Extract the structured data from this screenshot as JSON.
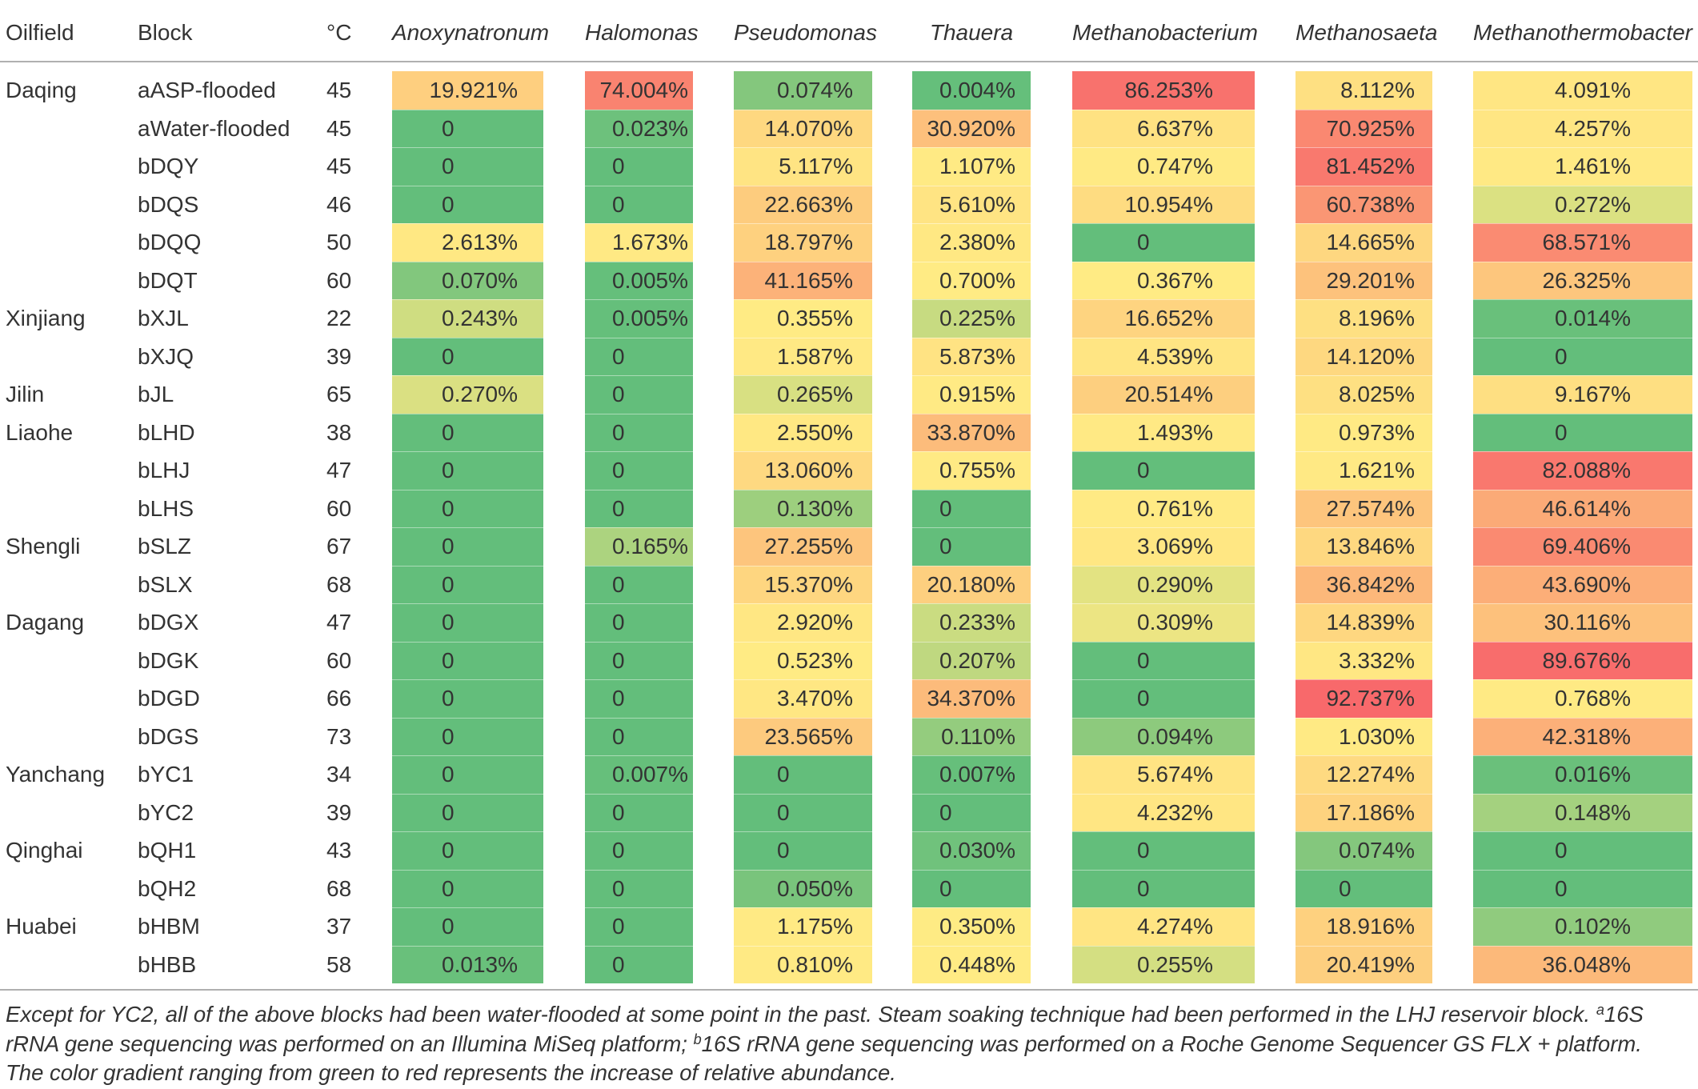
{
  "table": {
    "header": {
      "oilfield": "Oilfield",
      "block": "Block",
      "temperature": "°C",
      "genera": [
        "Anoxynatronum",
        "Halomonas",
        "Pseudomonas",
        "Thauera",
        "Methanobacterium",
        "Methanosaeta",
        "Methanothermobacter"
      ]
    },
    "rows": [
      {
        "oilfield": "Daqing",
        "block": "aASP-flooded",
        "temperature": "45",
        "values": [
          "19.921%",
          "74.004%",
          "0.074%",
          "0.004%",
          "86.253%",
          "8.112%",
          "4.091%"
        ]
      },
      {
        "oilfield": "",
        "block": "aWater-flooded",
        "temperature": "45",
        "values": [
          "0",
          "0.023%",
          "14.070%",
          "30.920%",
          "6.637%",
          "70.925%",
          "4.257%"
        ]
      },
      {
        "oilfield": "",
        "block": "bDQY",
        "temperature": "45",
        "values": [
          "0",
          "0",
          "5.117%",
          "1.107%",
          "0.747%",
          "81.452%",
          "1.461%"
        ]
      },
      {
        "oilfield": "",
        "block": "bDQS",
        "temperature": "46",
        "values": [
          "0",
          "0",
          "22.663%",
          "5.610%",
          "10.954%",
          "60.738%",
          "0.272%"
        ]
      },
      {
        "oilfield": "",
        "block": "bDQQ",
        "temperature": "50",
        "values": [
          "2.613%",
          "1.673%",
          "18.797%",
          "2.380%",
          "0",
          "14.665%",
          "68.571%"
        ]
      },
      {
        "oilfield": "",
        "block": "bDQT",
        "temperature": "60",
        "values": [
          "0.070%",
          "0.005%",
          "41.165%",
          "0.700%",
          "0.367%",
          "29.201%",
          "26.325%"
        ]
      },
      {
        "oilfield": "Xinjiang",
        "block": "bXJL",
        "temperature": "22",
        "values": [
          "0.243%",
          "0.005%",
          "0.355%",
          "0.225%",
          "16.652%",
          "8.196%",
          "0.014%"
        ]
      },
      {
        "oilfield": "",
        "block": "bXJQ",
        "temperature": "39",
        "values": [
          "0",
          "0",
          "1.587%",
          "5.873%",
          "4.539%",
          "14.120%",
          "0"
        ]
      },
      {
        "oilfield": "Jilin",
        "block": "bJL",
        "temperature": "65",
        "values": [
          "0.270%",
          "0",
          "0.265%",
          "0.915%",
          "20.514%",
          "8.025%",
          "9.167%"
        ]
      },
      {
        "oilfield": "Liaohe",
        "block": "bLHD",
        "temperature": "38",
        "values": [
          "0",
          "0",
          "2.550%",
          "33.870%",
          "1.493%",
          "0.973%",
          "0"
        ]
      },
      {
        "oilfield": "",
        "block": "bLHJ",
        "temperature": "47",
        "values": [
          "0",
          "0",
          "13.060%",
          "0.755%",
          "0",
          "1.621%",
          "82.088%"
        ]
      },
      {
        "oilfield": "",
        "block": "bLHS",
        "temperature": "60",
        "values": [
          "0",
          "0",
          "0.130%",
          "0",
          "0.761%",
          "27.574%",
          "46.614%"
        ]
      },
      {
        "oilfield": "Shengli",
        "block": "bSLZ",
        "temperature": "67",
        "values": [
          "0",
          "0.165%",
          "27.255%",
          "0",
          "3.069%",
          "13.846%",
          "69.406%"
        ]
      },
      {
        "oilfield": "",
        "block": "bSLX",
        "temperature": "68",
        "values": [
          "0",
          "0",
          "15.370%",
          "20.180%",
          "0.290%",
          "36.842%",
          "43.690%"
        ]
      },
      {
        "oilfield": "Dagang",
        "block": "bDGX",
        "temperature": "47",
        "values": [
          "0",
          "0",
          "2.920%",
          "0.233%",
          "0.309%",
          "14.839%",
          "30.116%"
        ]
      },
      {
        "oilfield": "",
        "block": "bDGK",
        "temperature": "60",
        "values": [
          "0",
          "0",
          "0.523%",
          "0.207%",
          "0",
          "3.332%",
          "89.676%"
        ]
      },
      {
        "oilfield": "",
        "block": "bDGD",
        "temperature": "66",
        "values": [
          "0",
          "0",
          "3.470%",
          "34.370%",
          "0",
          "92.737%",
          "0.768%"
        ]
      },
      {
        "oilfield": "",
        "block": "bDGS",
        "temperature": "73",
        "values": [
          "0",
          "0",
          "23.565%",
          "0.110%",
          "0.094%",
          "1.030%",
          "42.318%"
        ]
      },
      {
        "oilfield": "Yanchang",
        "block": "bYC1",
        "temperature": "34",
        "values": [
          "0",
          "0.007%",
          "0",
          "0.007%",
          "5.674%",
          "12.274%",
          "0.016%"
        ]
      },
      {
        "oilfield": "",
        "block": "bYC2",
        "temperature": "39",
        "values": [
          "0",
          "0",
          "0",
          "0",
          "4.232%",
          "17.186%",
          "0.148%"
        ]
      },
      {
        "oilfield": "Qinghai",
        "block": "bQH1",
        "temperature": "43",
        "values": [
          "0",
          "0",
          "0",
          "0.030%",
          "0",
          "0.074%",
          "0"
        ]
      },
      {
        "oilfield": "",
        "block": "bQH2",
        "temperature": "68",
        "values": [
          "0",
          "0",
          "0.050%",
          "0",
          "0",
          "0",
          "0"
        ]
      },
      {
        "oilfield": "Huabei",
        "block": "bHBM",
        "temperature": "37",
        "values": [
          "0",
          "0",
          "1.175%",
          "0.350%",
          "4.274%",
          "18.916%",
          "0.102%"
        ]
      },
      {
        "oilfield": "",
        "block": "bHBB",
        "temperature": "58",
        "values": [
          "0.013%",
          "0",
          "0.810%",
          "0.448%",
          "0.255%",
          "20.419%",
          "36.048%"
        ]
      }
    ]
  },
  "color_scale": {
    "low": "#63BE7B",
    "mid": "#FFEB84",
    "high": "#F8696B"
  },
  "footnote": {
    "line1_text": "Except for YC2, all of the above blocks had been water-flooded at some point in the past. Steam soaking technique had been performed in the LHJ reservoir block. ",
    "marker_a": "a",
    "line1_tail": "16S",
    "line2_text": "rRNA gene sequencing was performed on an Illumina MiSeq platform; ",
    "marker_b": "b",
    "line2_tail": "16S rRNA gene sequencing was performed on a Roche Genome Sequencer GS FLX + platform.",
    "line3_text": "The color gradient ranging from green to red represents the increase of relative abundance."
  }
}
